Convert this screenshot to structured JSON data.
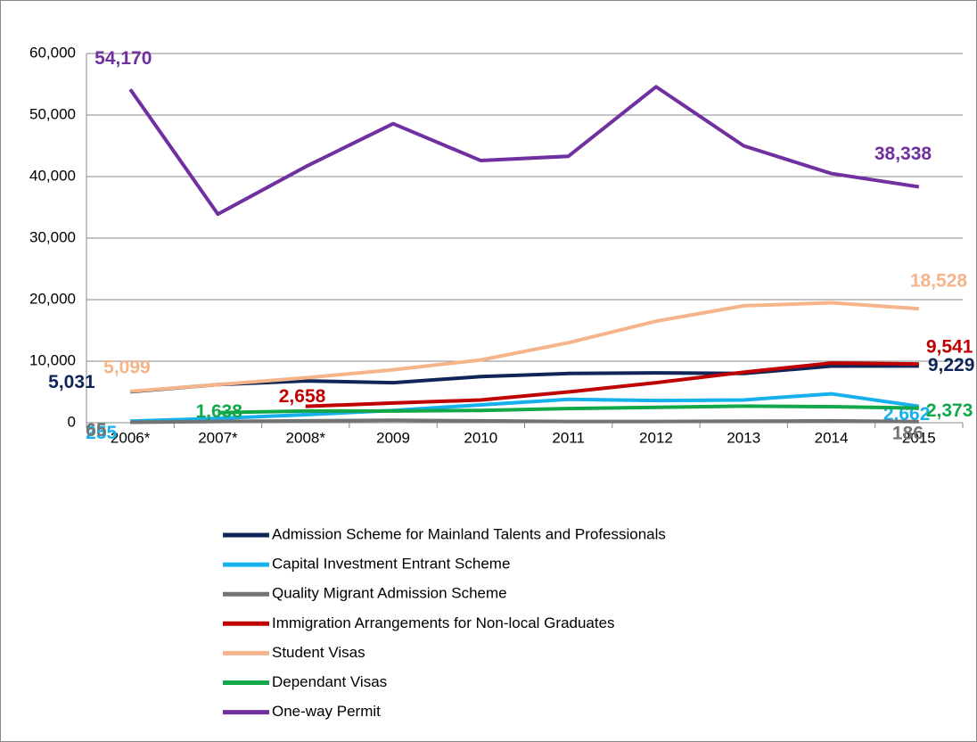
{
  "chart_data": {
    "type": "line",
    "categories": [
      "2006*",
      "2007*",
      "2008*",
      "2009",
      "2010",
      "2011",
      "2012",
      "2013",
      "2014",
      "2015"
    ],
    "ylim": [
      0,
      60000
    ],
    "yticks": [
      0,
      {
        "value": 10000,
        "label": "10,000"
      },
      {
        "value": 20000,
        "label": "20,000"
      },
      {
        "value": 30000,
        "label": "30,000"
      },
      {
        "value": 40000,
        "label": "40,000"
      },
      {
        "value": 50000,
        "label": "50,000"
      },
      {
        "value": 60000,
        "label": "60,000"
      }
    ],
    "grid": true,
    "legend": "bottom",
    "series": [
      {
        "name": "Admission Scheme for Mainland Talents and Professionals",
        "color": "#0f2557",
        "values": [
          5031,
          6200,
          6800,
          6500,
          7500,
          8000,
          8100,
          8000,
          9200,
          9229
        ],
        "value_labels": [
          "5,031",
          null,
          null,
          null,
          null,
          null,
          null,
          null,
          null,
          "9,229"
        ]
      },
      {
        "name": "Capital Investment Entrant Scheme",
        "color": "#16b0ec",
        "values": [
          255,
          700,
          1300,
          2000,
          2900,
          3800,
          3600,
          3700,
          4700,
          2662
        ],
        "value_labels": [
          "255",
          null,
          null,
          null,
          null,
          null,
          null,
          null,
          null,
          "2,662"
        ]
      },
      {
        "name": "Quality Migrant Admission Scheme",
        "color": "#737373",
        "values": [
          65,
          200,
          300,
          400,
          300,
          200,
          200,
          250,
          300,
          186
        ],
        "value_labels": [
          "65",
          null,
          null,
          null,
          null,
          null,
          null,
          null,
          null,
          "186"
        ]
      },
      {
        "name": "Immigration Arrangements for Non-local Graduates",
        "color": "#c00000",
        "values": [
          null,
          null,
          2658,
          3200,
          3700,
          5000,
          6500,
          8200,
          9700,
          9541
        ],
        "value_labels": [
          null,
          null,
          "2,658",
          null,
          null,
          null,
          null,
          null,
          null,
          "9,541"
        ]
      },
      {
        "name": "Student Visas",
        "color": "#f5b48a",
        "values": [
          5099,
          6200,
          7300,
          8600,
          10200,
          13000,
          16500,
          19000,
          19500,
          18528
        ],
        "value_labels": [
          "5,099",
          null,
          null,
          null,
          null,
          null,
          null,
          null,
          null,
          "18,528"
        ]
      },
      {
        "name": "Dependant Visas",
        "color": "#12a84a",
        "values": [
          null,
          1638,
          1900,
          1900,
          2000,
          2300,
          2500,
          2700,
          2600,
          2373
        ],
        "value_labels": [
          null,
          "1,638",
          null,
          null,
          null,
          null,
          null,
          null,
          null,
          "2,373"
        ]
      },
      {
        "name": "One-way Permit",
        "color": "#7030a0",
        "values": [
          54170,
          33900,
          41600,
          48600,
          42600,
          43300,
          54600,
          45000,
          40500,
          38338
        ],
        "value_labels": [
          "54,170",
          null,
          null,
          null,
          null,
          null,
          null,
          null,
          null,
          "38,338"
        ]
      }
    ]
  }
}
